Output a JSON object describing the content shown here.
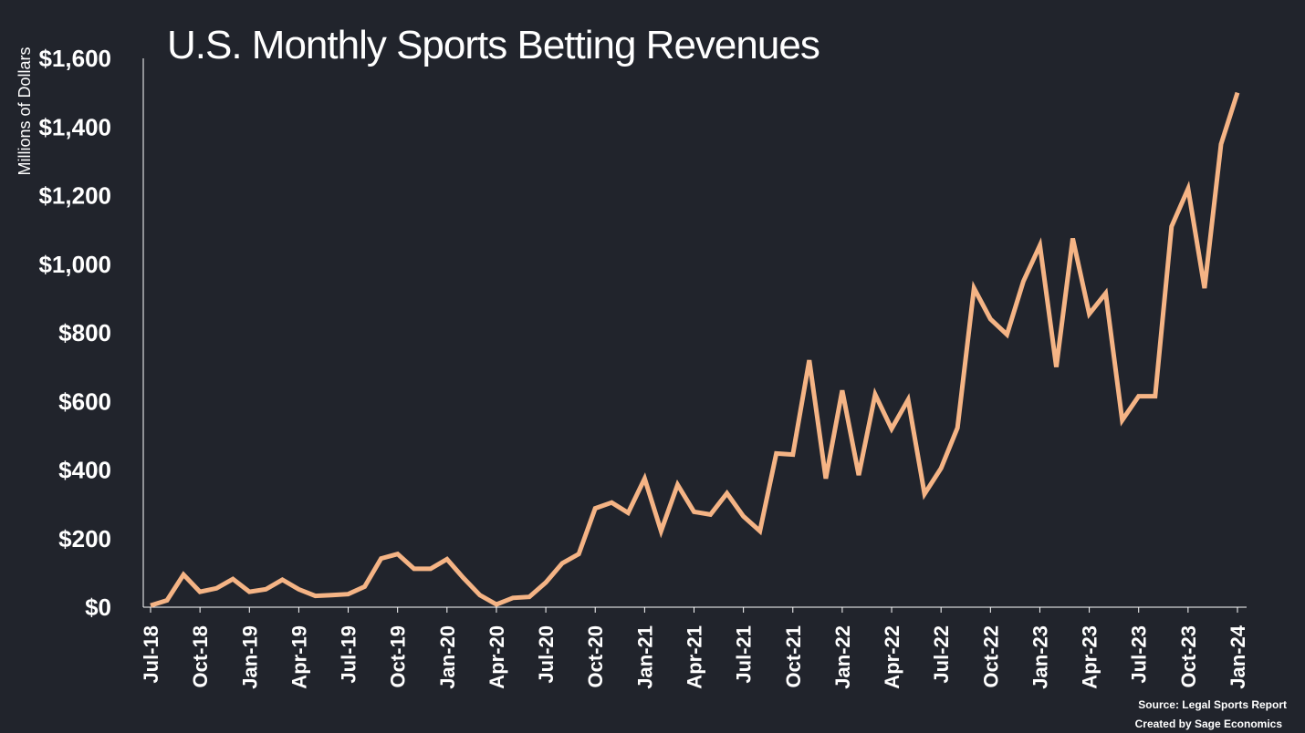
{
  "colors": {
    "background": "#21242c",
    "line": "#f5b485",
    "text": "#ffffff",
    "axis": "#ffffff"
  },
  "source_line_1": "Source: Legal Sports Report",
  "source_line_2": "Created by Sage Economics",
  "chart_data": {
    "type": "line",
    "title": "U.S. Monthly Sports Betting Revenues",
    "xlabel": "",
    "ylabel": "Millions of Dollars",
    "ylim": [
      0,
      1600
    ],
    "yticks": [
      0,
      200,
      400,
      600,
      800,
      1000,
      1200,
      1400,
      1600
    ],
    "ytick_labels": [
      "$0",
      "$200",
      "$400",
      "$600",
      "$800",
      "$1,000",
      "$1,200",
      "$1,400",
      "$1,600"
    ],
    "grid": false,
    "xtick_labels": [
      "Jul-18",
      "Oct-18",
      "Jan-19",
      "Apr-19",
      "Jul-19",
      "Oct-19",
      "Jan-20",
      "Apr-20",
      "Jul-20",
      "Oct-20",
      "Jan-21",
      "Apr-21",
      "Jul-21",
      "Oct-21",
      "Jan-22",
      "Apr-22",
      "Jul-22",
      "Oct-22",
      "Jan-23",
      "Apr-23",
      "Jul-23",
      "Oct-23",
      "Jan-24"
    ],
    "x": [
      "Jul-18",
      "Aug-18",
      "Sep-18",
      "Oct-18",
      "Nov-18",
      "Dec-18",
      "Jan-19",
      "Feb-19",
      "Mar-19",
      "Apr-19",
      "May-19",
      "Jun-19",
      "Jul-19",
      "Aug-19",
      "Sep-19",
      "Oct-19",
      "Nov-19",
      "Dec-19",
      "Jan-20",
      "Feb-20",
      "Mar-20",
      "Apr-20",
      "May-20",
      "Jun-20",
      "Jul-20",
      "Aug-20",
      "Sep-20",
      "Oct-20",
      "Nov-20",
      "Dec-20",
      "Jan-21",
      "Feb-21",
      "Mar-21",
      "Apr-21",
      "May-21",
      "Jun-21",
      "Jul-21",
      "Aug-21",
      "Sep-21",
      "Oct-21",
      "Nov-21",
      "Dec-21",
      "Jan-22",
      "Feb-22",
      "Mar-22",
      "Apr-22",
      "May-22",
      "Jun-22",
      "Jul-22",
      "Aug-22",
      "Sep-22",
      "Oct-22",
      "Nov-22",
      "Dec-22",
      "Jan-23",
      "Feb-23",
      "Mar-23",
      "Apr-23",
      "May-23",
      "Jun-23",
      "Jul-23",
      "Aug-23",
      "Sep-23",
      "Oct-23",
      "Nov-23",
      "Dec-23",
      "Jan-24"
    ],
    "series": [
      {
        "values": [
          5,
          20,
          95,
          45,
          55,
          82,
          45,
          52,
          80,
          52,
          33,
          35,
          38,
          60,
          142,
          155,
          112,
          112,
          140,
          85,
          35,
          8,
          27,
          30,
          72,
          128,
          155,
          288,
          305,
          275,
          375,
          222,
          357,
          278,
          270,
          332,
          265,
          222,
          448,
          445,
          720,
          375,
          632,
          385,
          620,
          520,
          605,
          330,
          405,
          523,
          930,
          840,
          795,
          950,
          1055,
          700,
          1075,
          855,
          915,
          545,
          615,
          615,
          1110,
          1220,
          930,
          1350,
          1500
        ]
      }
    ]
  }
}
